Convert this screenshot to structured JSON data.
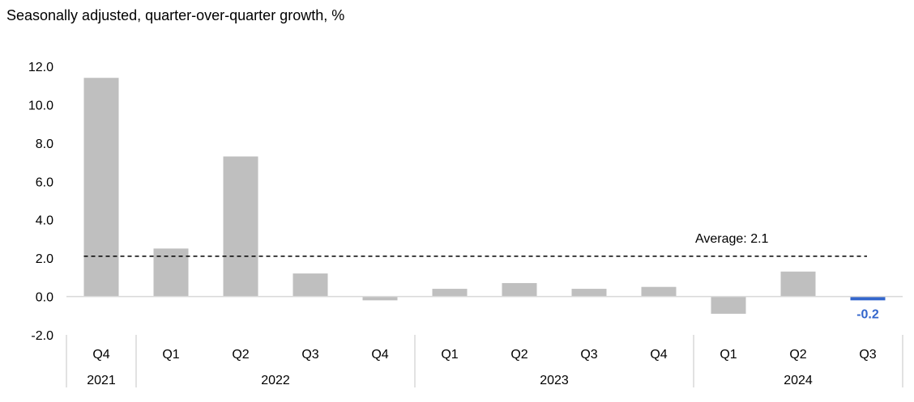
{
  "subtitle": "Seasonally adjusted, quarter-over-quarter growth, %",
  "chart_data": {
    "type": "bar",
    "title": "",
    "xlabel": "",
    "ylabel": "",
    "ylim": [
      -2.0,
      12.0
    ],
    "yticks": [
      "12.0",
      "10.0",
      "8.0",
      "6.0",
      "4.0",
      "2.0",
      "0.0",
      "-2.0"
    ],
    "ytick_values": [
      12,
      10,
      8,
      6,
      4,
      2,
      0,
      -2
    ],
    "categories": [
      "Q4",
      "Q1",
      "Q2",
      "Q3",
      "Q4",
      "Q1",
      "Q2",
      "Q3",
      "Q4",
      "Q1",
      "Q2",
      "Q3"
    ],
    "years": [
      {
        "label": "2021",
        "start": 0,
        "count": 1
      },
      {
        "label": "2022",
        "start": 1,
        "count": 4
      },
      {
        "label": "2023",
        "start": 5,
        "count": 4
      },
      {
        "label": "2024",
        "start": 9,
        "count": 3
      }
    ],
    "values": [
      11.4,
      2.5,
      7.3,
      1.2,
      -0.2,
      0.4,
      0.7,
      0.4,
      0.5,
      -0.9,
      1.3,
      -0.2
    ],
    "highlight_index": 11,
    "highlight_label": "-0.2",
    "average": {
      "label": "Average: 2.1",
      "value": 2.1
    },
    "colors": {
      "bar": "#BFBFBF",
      "highlight": "#3366CC",
      "average_line": "#000000",
      "axis": "#D9D9D9"
    },
    "grid": false,
    "legend": "none"
  }
}
